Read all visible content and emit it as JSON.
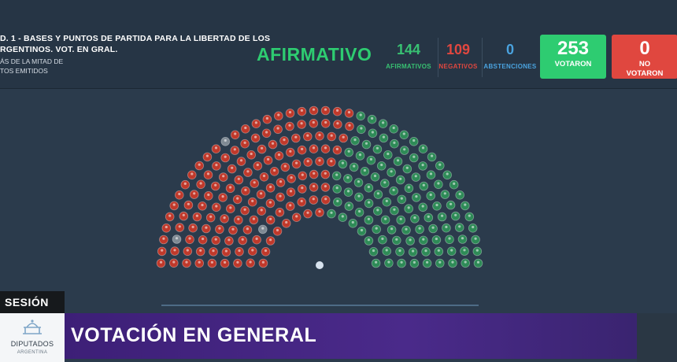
{
  "header": {
    "title_line1": "D. 1 - BASES Y PUNTOS DE PARTIDA PARA LA LIBERTAD DE LOS",
    "title_line2": "RGENTINOS. VOT. EN GRAL.",
    "subtitle_line1": "ÁS DE LA MITAD DE",
    "subtitle_line2": "TOS EMITIDOS",
    "result": "AFIRMATIVO",
    "result_color": "#2ecc71"
  },
  "tallies": {
    "afirmativos": {
      "value": "144",
      "label": "AFIRMATIVOS",
      "color": "#38c172"
    },
    "negativos": {
      "value": "109",
      "label": "NEGATIVOS",
      "color": "#e0473f"
    },
    "abstenciones": {
      "value": "0",
      "label": "ABSTENCIONES",
      "color": "#4aa3df"
    }
  },
  "boxes": {
    "votaron": {
      "value": "253",
      "label": "VOTARON",
      "color": "#2ecc71"
    },
    "no_votaron": {
      "value": "0",
      "label_line1": "NO",
      "label_line2": "VOTARON",
      "color": "#e0473f"
    }
  },
  "hemicycle": {
    "rows": 9,
    "seats_total": 257,
    "afirmativo_color": "#2e8b57",
    "negativo_color": "#c0392b",
    "ausente_color": "#7f8a94",
    "presidencia_color": "#d7e2ee"
  },
  "footer": {
    "session_label": "SESIÓN",
    "chamber_name": "DIPUTADOS",
    "chamber_sub": "ARGENTINA",
    "banner_text": "VOTACIÓN EN GENERAL"
  }
}
